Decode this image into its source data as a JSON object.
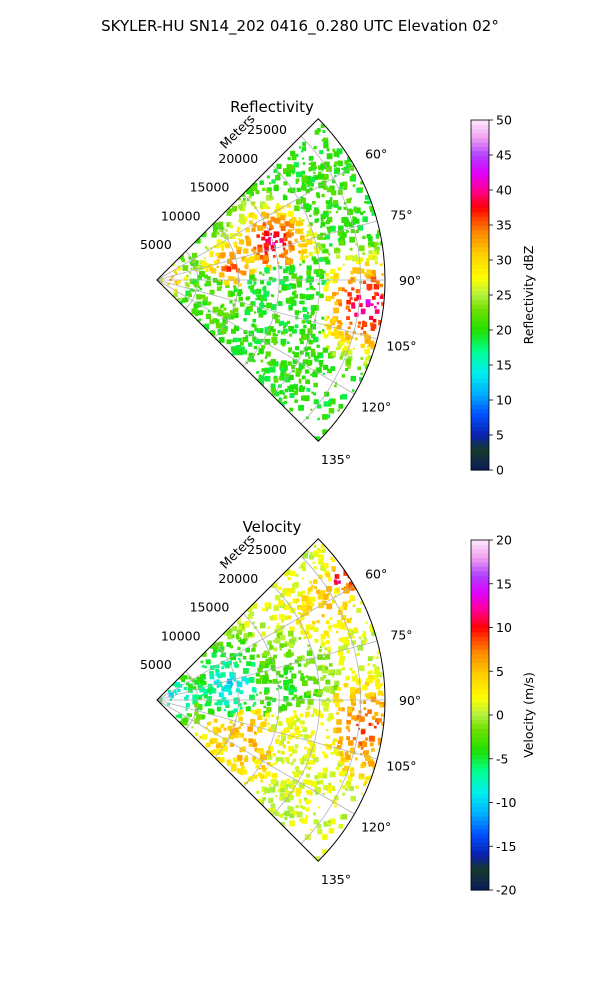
{
  "figure": {
    "suptitle": "SKYLER-HU  SN14_202  0416_0.280 UTC Elevation 02°"
  },
  "chart_data": [
    {
      "type": "heatmap",
      "subtype": "radar-ppi-sector",
      "title": "Reflectivity",
      "range_label": "Meters",
      "range_ticks": [
        5000,
        10000,
        15000,
        20000,
        25000
      ],
      "range_max": 28000,
      "azimuth_ticks": [
        "60°",
        "75°",
        "90°",
        "105°",
        "120°",
        "135°"
      ],
      "azimuth_range": [
        45,
        135
      ],
      "grid": true,
      "colorbar": {
        "label": "Reflectivity dBZ",
        "min": 0,
        "max": 50,
        "ticks": [
          0,
          5,
          10,
          15,
          20,
          25,
          30,
          35,
          40,
          45,
          50
        ],
        "position": "right"
      },
      "echo_cells": [
        {
          "az": 72,
          "r": 15000,
          "size": 4500,
          "value": 41
        },
        {
          "az": 80,
          "r": 9500,
          "size": 3500,
          "value": 37
        },
        {
          "az": 97,
          "r": 26000,
          "size": 5500,
          "value": 42
        },
        {
          "az": 110,
          "r": 8500,
          "size": 4000,
          "value": 22
        },
        {
          "az": 100,
          "r": 15000,
          "size": 6000,
          "value": 20
        },
        {
          "az": 62,
          "r": 23000,
          "size": 4000,
          "value": 21
        },
        {
          "az": 120,
          "r": 18000,
          "size": 4000,
          "value": 21
        },
        {
          "az": 88,
          "r": 2000,
          "size": 2000,
          "value": 33
        }
      ]
    },
    {
      "type": "heatmap",
      "subtype": "radar-ppi-sector",
      "title": "Velocity",
      "range_label": "Meters",
      "range_ticks": [
        5000,
        10000,
        15000,
        20000,
        25000
      ],
      "range_max": 28000,
      "azimuth_ticks": [
        "60°",
        "75°",
        "90°",
        "105°",
        "120°",
        "135°"
      ],
      "azimuth_range": [
        45,
        135
      ],
      "grid": true,
      "colorbar": {
        "label": "Velocity (m/s)",
        "min": -20,
        "max": 20,
        "ticks": [
          -20,
          -15,
          -10,
          -5,
          0,
          5,
          10,
          15,
          20
        ],
        "position": "right"
      },
      "echo_cells": [
        {
          "az": 78,
          "r": 9000,
          "size": 5000,
          "value": -10
        },
        {
          "az": 85,
          "r": 16000,
          "size": 5000,
          "value": -5
        },
        {
          "az": 60,
          "r": 24000,
          "size": 4000,
          "value": 5
        },
        {
          "az": 98,
          "r": 26000,
          "size": 5000,
          "value": 9
        },
        {
          "az": 105,
          "r": 18000,
          "size": 6000,
          "value": 2
        },
        {
          "az": 115,
          "r": 12000,
          "size": 5000,
          "value": 6
        },
        {
          "az": 57,
          "r": 27000,
          "size": 2000,
          "value": 12
        },
        {
          "az": 88,
          "r": 2500,
          "size": 2500,
          "value": -12
        }
      ]
    }
  ],
  "colors": {
    "grid": "#b0b0b0",
    "frame": "#000000"
  }
}
